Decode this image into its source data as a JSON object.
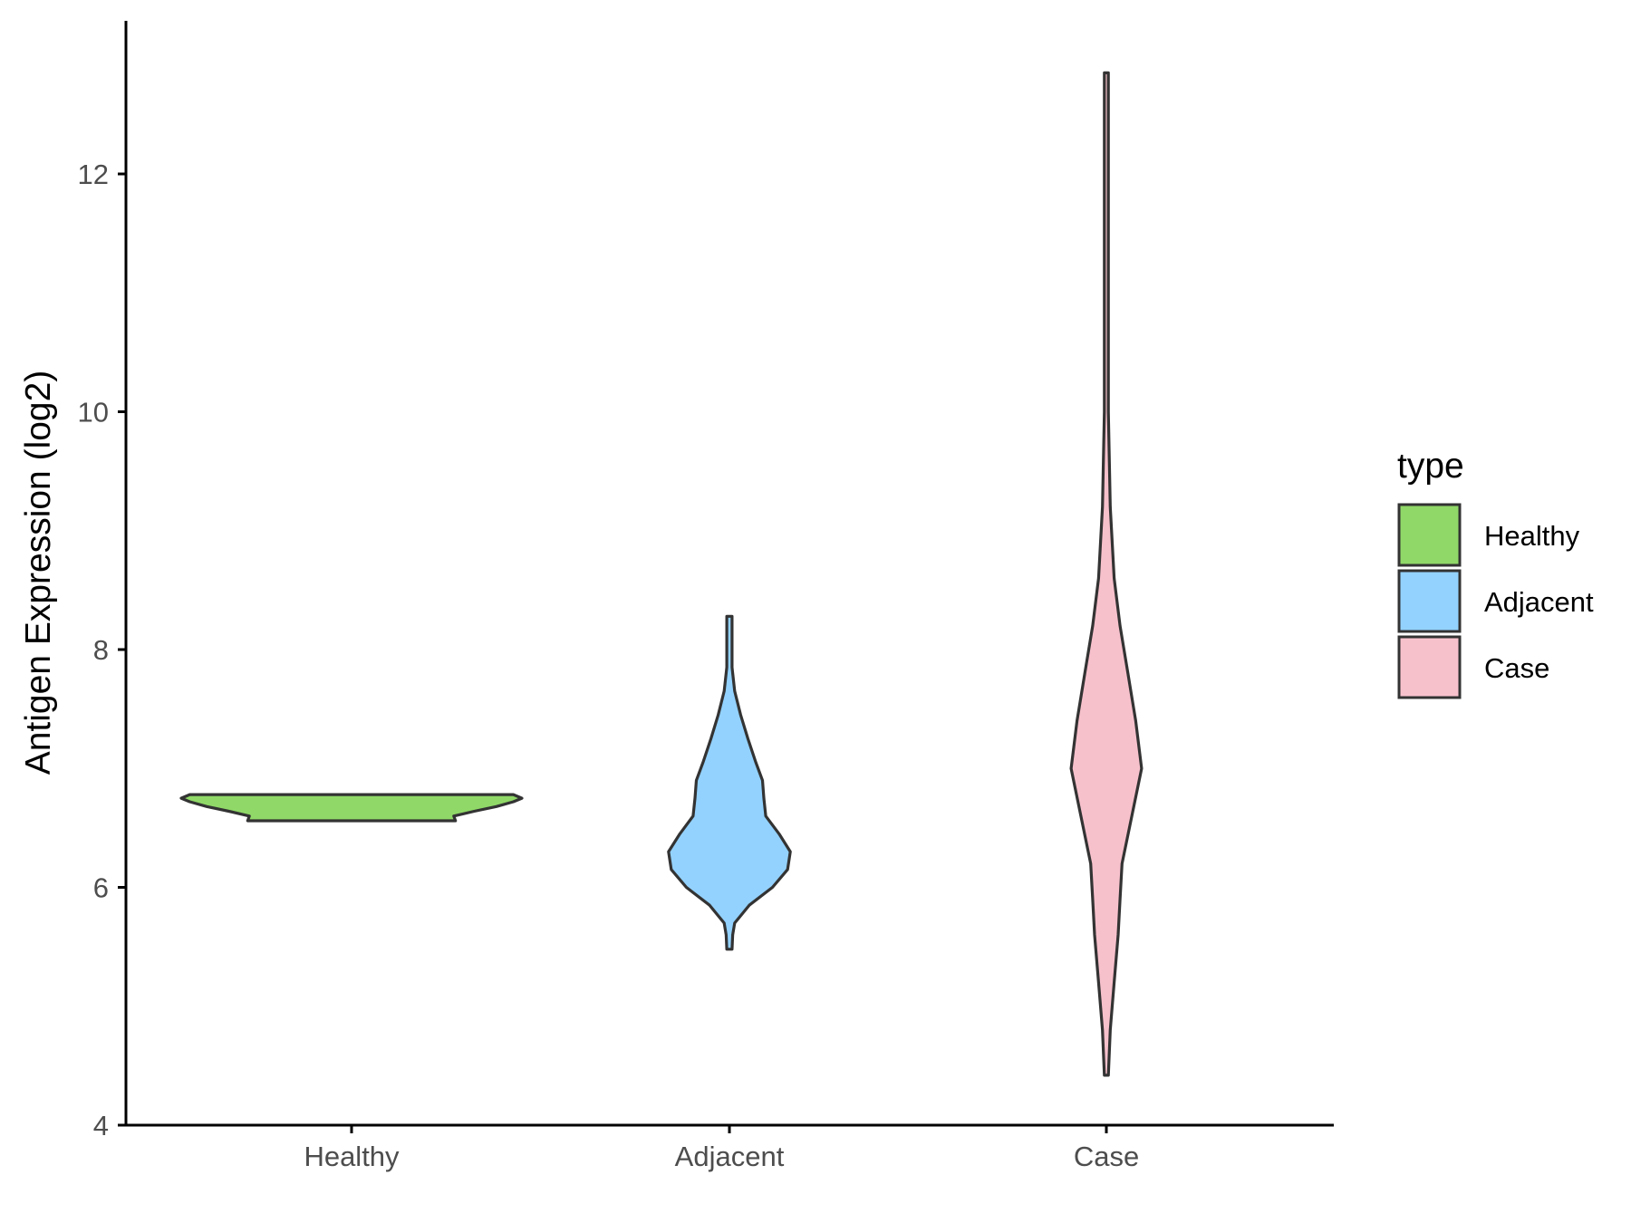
{
  "chart_data": {
    "type": "violin",
    "xlabel": "",
    "ylabel": "Antigen Expression (log2)",
    "ylim": [
      4,
      13.3
    ],
    "yticks": [
      "4",
      "6",
      "8",
      "10",
      "12"
    ],
    "categories": [
      "Healthy",
      "Adjacent",
      "Case"
    ],
    "grid": false,
    "legend": {
      "title": "type",
      "position": "right",
      "items": [
        {
          "label": "Healthy",
          "color": "#90D968"
        },
        {
          "label": "Adjacent",
          "color": "#93D2FF"
        },
        {
          "label": "Case",
          "color": "#F7C1CC"
        }
      ]
    },
    "series": [
      {
        "category": "Healthy",
        "color": "#90D968",
        "min": 6.56,
        "max": 6.78,
        "density": [
          [
            6.56,
            0.61
          ],
          [
            6.6,
            0.6
          ],
          [
            6.64,
            0.72
          ],
          [
            6.68,
            0.85
          ],
          [
            6.72,
            0.95
          ],
          [
            6.75,
            1.0
          ],
          [
            6.78,
            0.95
          ]
        ]
      },
      {
        "category": "Adjacent",
        "color": "#93D2FF",
        "min": 5.48,
        "max": 8.28,
        "density": [
          [
            5.48,
            0.04
          ],
          [
            5.6,
            0.05
          ],
          [
            5.7,
            0.08
          ],
          [
            5.85,
            0.3
          ],
          [
            6.0,
            0.65
          ],
          [
            6.15,
            0.88
          ],
          [
            6.3,
            0.92
          ],
          [
            6.45,
            0.75
          ],
          [
            6.6,
            0.55
          ],
          [
            6.75,
            0.52
          ],
          [
            6.9,
            0.5
          ],
          [
            7.05,
            0.4
          ],
          [
            7.25,
            0.28
          ],
          [
            7.45,
            0.17
          ],
          [
            7.65,
            0.08
          ],
          [
            7.85,
            0.04
          ],
          [
            8.05,
            0.04
          ],
          [
            8.28,
            0.04
          ]
        ]
      },
      {
        "category": "Case",
        "color": "#F7C1CC",
        "min": 4.42,
        "max": 12.85,
        "density": [
          [
            4.42,
            0.01
          ],
          [
            4.8,
            0.02
          ],
          [
            5.2,
            0.04
          ],
          [
            5.6,
            0.06
          ],
          [
            5.9,
            0.07
          ],
          [
            6.2,
            0.08
          ],
          [
            6.6,
            0.13
          ],
          [
            7.0,
            0.18
          ],
          [
            7.4,
            0.15
          ],
          [
            7.8,
            0.11
          ],
          [
            8.2,
            0.07
          ],
          [
            8.6,
            0.04
          ],
          [
            9.2,
            0.02
          ],
          [
            10.0,
            0.01
          ],
          [
            11.0,
            0.01
          ],
          [
            12.0,
            0.01
          ],
          [
            12.85,
            0.01
          ]
        ]
      }
    ]
  }
}
